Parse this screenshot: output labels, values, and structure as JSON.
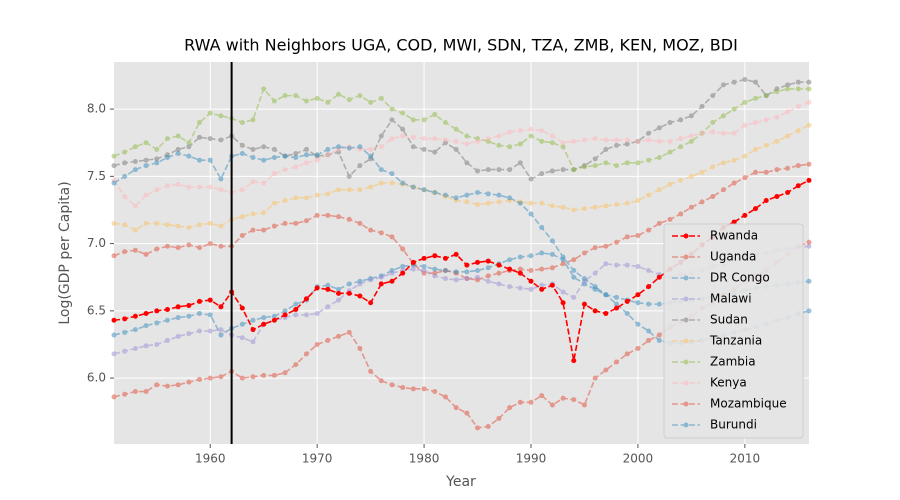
{
  "chart_data": {
    "type": "line",
    "title": "RWA with Neighbors UGA, COD, MWI, SDN, TZA, ZMB, KEN, MOZ, BDI",
    "x_label": "Year",
    "y_label": "Log(GDP per Capita)",
    "x": [
      1951,
      1952,
      1953,
      1954,
      1955,
      1956,
      1957,
      1958,
      1959,
      1960,
      1961,
      1962,
      1963,
      1964,
      1965,
      1966,
      1967,
      1968,
      1969,
      1970,
      1971,
      1972,
      1973,
      1974,
      1975,
      1976,
      1977,
      1978,
      1979,
      1980,
      1981,
      1982,
      1983,
      1984,
      1985,
      1986,
      1987,
      1988,
      1989,
      1990,
      1991,
      1992,
      1993,
      1994,
      1995,
      1996,
      1997,
      1998,
      1999,
      2000,
      2001,
      2002,
      2003,
      2004,
      2005,
      2006,
      2007,
      2008,
      2009,
      2010,
      2011,
      2012,
      2013,
      2014,
      2015,
      2016
    ],
    "xlim": [
      1951,
      2016
    ],
    "xticks": [
      1960,
      1970,
      1980,
      1990,
      2000,
      2010
    ],
    "ylim": [
      5.51,
      8.35
    ],
    "yticks": [
      {
        "value": 6,
        "label": "6.0"
      },
      6.5,
      {
        "value": 7,
        "label": "7.0"
      },
      7.5,
      {
        "value": 8,
        "label": "8.0"
      }
    ],
    "grid": true,
    "legend": "lower right",
    "vline": 1962,
    "series": [
      {
        "name": "Rwanda",
        "color": "#ff0000",
        "opacity": 1,
        "values": [
          6.43,
          6.44,
          6.46,
          6.48,
          6.5,
          6.51,
          6.53,
          6.54,
          6.57,
          6.58,
          6.53,
          6.64,
          6.52,
          6.36,
          6.4,
          6.43,
          6.47,
          6.51,
          6.59,
          6.67,
          6.66,
          6.63,
          6.63,
          6.61,
          6.56,
          6.7,
          6.72,
          6.78,
          6.86,
          6.89,
          6.91,
          6.89,
          6.92,
          6.84,
          6.86,
          6.87,
          6.84,
          6.81,
          6.78,
          6.72,
          6.66,
          6.69,
          6.56,
          6.13,
          6.55,
          6.5,
          6.48,
          6.52,
          6.57,
          6.62,
          6.68,
          6.75,
          6.81,
          6.86,
          6.92,
          6.99,
          7.05,
          7.12,
          7.16,
          7.21,
          7.26,
          7.32,
          7.35,
          7.38,
          7.43,
          7.47
        ]
      },
      {
        "name": "Uganda",
        "color": "#E24A33",
        "opacity": 0.5,
        "values": [
          6.91,
          6.94,
          6.95,
          6.92,
          6.96,
          6.98,
          6.97,
          6.99,
          6.97,
          7.0,
          6.98,
          6.98,
          7.06,
          7.1,
          7.1,
          7.13,
          7.15,
          7.15,
          7.17,
          7.21,
          7.21,
          7.2,
          7.18,
          7.15,
          7.1,
          7.08,
          7.05,
          6.96,
          6.85,
          6.78,
          6.78,
          6.8,
          6.78,
          6.74,
          6.73,
          6.76,
          6.78,
          6.8,
          6.81,
          6.8,
          6.81,
          6.82,
          6.85,
          6.88,
          6.93,
          6.97,
          6.98,
          7.01,
          7.05,
          7.06,
          7.1,
          7.15,
          7.18,
          7.22,
          7.27,
          7.31,
          7.35,
          7.4,
          7.45,
          7.49,
          7.53,
          7.53,
          7.55,
          7.56,
          7.58,
          7.59
        ]
      },
      {
        "name": "DR Congo",
        "color": "#348ABD",
        "opacity": 0.5,
        "values": [
          6.32,
          6.34,
          6.36,
          6.39,
          6.41,
          6.43,
          6.45,
          6.46,
          6.48,
          6.47,
          6.32,
          6.37,
          6.4,
          6.43,
          6.45,
          6.46,
          6.5,
          6.55,
          6.58,
          6.68,
          6.69,
          6.66,
          6.7,
          6.72,
          6.74,
          6.76,
          6.8,
          6.83,
          6.84,
          6.83,
          6.81,
          6.8,
          6.79,
          6.79,
          6.8,
          6.82,
          6.85,
          6.88,
          6.9,
          6.91,
          6.93,
          6.92,
          6.88,
          6.75,
          6.7,
          6.66,
          6.62,
          6.6,
          6.58,
          6.56,
          6.55,
          6.55,
          6.56,
          6.57,
          6.58,
          6.59,
          6.61,
          6.62,
          6.63,
          6.65,
          6.67,
          6.68,
          6.69,
          6.7,
          6.71,
          6.72
        ]
      },
      {
        "name": "Malawi",
        "color": "#988ED5",
        "opacity": 0.5,
        "values": [
          6.18,
          6.2,
          6.22,
          6.24,
          6.25,
          6.28,
          6.31,
          6.33,
          6.35,
          6.35,
          6.36,
          6.32,
          6.3,
          6.27,
          6.4,
          6.43,
          6.45,
          6.47,
          6.47,
          6.48,
          6.53,
          6.58,
          6.65,
          6.7,
          6.73,
          6.75,
          6.78,
          6.8,
          6.81,
          6.8,
          6.76,
          6.74,
          6.73,
          6.74,
          6.75,
          6.72,
          6.7,
          6.68,
          6.67,
          6.66,
          6.69,
          6.7,
          6.64,
          6.6,
          6.72,
          6.78,
          6.85,
          6.84,
          6.84,
          6.83,
          6.8,
          6.77,
          6.75,
          6.77,
          6.78,
          6.8,
          6.83,
          6.85,
          6.88,
          6.9,
          6.92,
          6.93,
          6.95,
          6.96,
          6.97,
          6.98
        ]
      },
      {
        "name": "Sudan",
        "color": "#777777",
        "opacity": 0.5,
        "values": [
          7.58,
          7.6,
          7.61,
          7.62,
          7.63,
          7.66,
          7.7,
          7.72,
          7.79,
          7.78,
          7.77,
          7.8,
          7.73,
          7.7,
          7.72,
          7.7,
          7.65,
          7.67,
          7.7,
          7.65,
          7.66,
          7.68,
          7.5,
          7.58,
          7.63,
          7.8,
          7.92,
          7.85,
          7.72,
          7.7,
          7.68,
          7.75,
          7.7,
          7.6,
          7.54,
          7.55,
          7.55,
          7.55,
          7.6,
          7.48,
          7.52,
          7.54,
          7.55,
          7.55,
          7.58,
          7.63,
          7.7,
          7.73,
          7.74,
          7.76,
          7.82,
          7.86,
          7.9,
          7.92,
          7.95,
          8.02,
          8.1,
          8.18,
          8.2,
          8.22,
          8.2,
          8.1,
          8.15,
          8.18,
          8.2,
          8.2
        ]
      },
      {
        "name": "Tanzania",
        "color": "#FBC15E",
        "opacity": 0.5,
        "values": [
          7.15,
          7.14,
          7.1,
          7.15,
          7.15,
          7.14,
          7.13,
          7.12,
          7.14,
          7.15,
          7.13,
          7.18,
          7.2,
          7.22,
          7.23,
          7.3,
          7.32,
          7.34,
          7.34,
          7.36,
          7.37,
          7.4,
          7.4,
          7.4,
          7.42,
          7.45,
          7.45,
          7.44,
          7.42,
          7.4,
          7.38,
          7.35,
          7.32,
          7.31,
          7.29,
          7.3,
          7.31,
          7.32,
          7.31,
          7.3,
          7.3,
          7.28,
          7.27,
          7.25,
          7.26,
          7.27,
          7.28,
          7.29,
          7.3,
          7.32,
          7.36,
          7.4,
          7.44,
          7.47,
          7.5,
          7.53,
          7.57,
          7.6,
          7.62,
          7.65,
          7.7,
          7.73,
          7.76,
          7.8,
          7.84,
          7.88
        ]
      },
      {
        "name": "Zambia",
        "color": "#8EBA42",
        "opacity": 0.5,
        "values": [
          7.65,
          7.68,
          7.72,
          7.75,
          7.7,
          7.78,
          7.8,
          7.75,
          7.9,
          7.97,
          7.95,
          7.93,
          7.9,
          7.92,
          8.15,
          8.06,
          8.1,
          8.1,
          8.06,
          8.08,
          8.05,
          8.11,
          8.07,
          8.1,
          8.05,
          8.08,
          8.0,
          7.97,
          7.92,
          7.92,
          7.96,
          7.9,
          7.85,
          7.8,
          7.78,
          7.76,
          7.73,
          7.72,
          7.74,
          7.8,
          7.76,
          7.75,
          7.72,
          7.55,
          7.57,
          7.58,
          7.6,
          7.58,
          7.6,
          7.6,
          7.62,
          7.64,
          7.68,
          7.72,
          7.76,
          7.82,
          7.9,
          7.95,
          8.0,
          8.05,
          8.08,
          8.1,
          8.13,
          8.15,
          8.15,
          8.15
        ]
      },
      {
        "name": "Kenya",
        "color": "#FFB5B8",
        "opacity": 0.5,
        "values": [
          7.47,
          7.35,
          7.28,
          7.36,
          7.4,
          7.43,
          7.44,
          7.42,
          7.42,
          7.42,
          7.4,
          7.38,
          7.4,
          7.46,
          7.45,
          7.52,
          7.55,
          7.57,
          7.6,
          7.62,
          7.66,
          7.7,
          7.72,
          7.7,
          7.7,
          7.72,
          7.78,
          7.8,
          7.79,
          7.78,
          7.78,
          7.77,
          7.76,
          7.74,
          7.76,
          7.78,
          7.8,
          7.83,
          7.84,
          7.85,
          7.84,
          7.8,
          7.75,
          7.76,
          7.77,
          7.78,
          7.77,
          7.77,
          7.77,
          7.76,
          7.77,
          7.76,
          7.76,
          7.78,
          7.8,
          7.82,
          7.83,
          7.82,
          7.82,
          7.88,
          7.9,
          7.92,
          7.94,
          7.98,
          8.02,
          8.05
        ]
      },
      {
        "name": "Mozambique",
        "color": "#E24A33",
        "opacity": 0.5,
        "values": [
          5.86,
          5.88,
          5.9,
          5.9,
          5.95,
          5.94,
          5.95,
          5.97,
          5.99,
          6.0,
          6.01,
          6.05,
          6.0,
          6.01,
          6.02,
          6.02,
          6.04,
          6.1,
          6.18,
          6.25,
          6.28,
          6.31,
          6.34,
          6.22,
          6.05,
          5.98,
          5.95,
          5.93,
          5.92,
          5.92,
          5.9,
          5.86,
          5.78,
          5.74,
          5.63,
          5.64,
          5.7,
          5.78,
          5.82,
          5.82,
          5.87,
          5.8,
          5.85,
          5.84,
          5.8,
          6.0,
          6.06,
          6.12,
          6.18,
          6.22,
          6.28,
          6.32,
          6.38,
          6.42,
          6.46,
          6.52,
          6.56,
          6.62,
          6.66,
          6.72,
          6.76,
          6.8,
          6.86,
          6.92,
          6.98,
          7.01
        ]
      },
      {
        "name": "Burundi",
        "color": "#348ABD",
        "opacity": 0.5,
        "values": [
          7.45,
          7.5,
          7.55,
          7.58,
          7.6,
          7.64,
          7.67,
          7.65,
          7.62,
          7.62,
          7.48,
          7.65,
          7.67,
          7.64,
          7.62,
          7.64,
          7.65,
          7.64,
          7.66,
          7.66,
          7.7,
          7.72,
          7.71,
          7.72,
          7.65,
          7.55,
          7.52,
          7.45,
          7.42,
          7.4,
          7.38,
          7.36,
          7.34,
          7.36,
          7.38,
          7.37,
          7.36,
          7.34,
          7.3,
          7.22,
          7.12,
          7.02,
          6.9,
          6.8,
          6.74,
          6.68,
          6.62,
          6.55,
          6.48,
          6.4,
          6.35,
          6.28,
          6.26,
          6.26,
          6.27,
          6.28,
          6.3,
          6.32,
          6.34,
          6.36,
          6.38,
          6.4,
          6.43,
          6.45,
          6.48,
          6.5
        ]
      }
    ]
  }
}
